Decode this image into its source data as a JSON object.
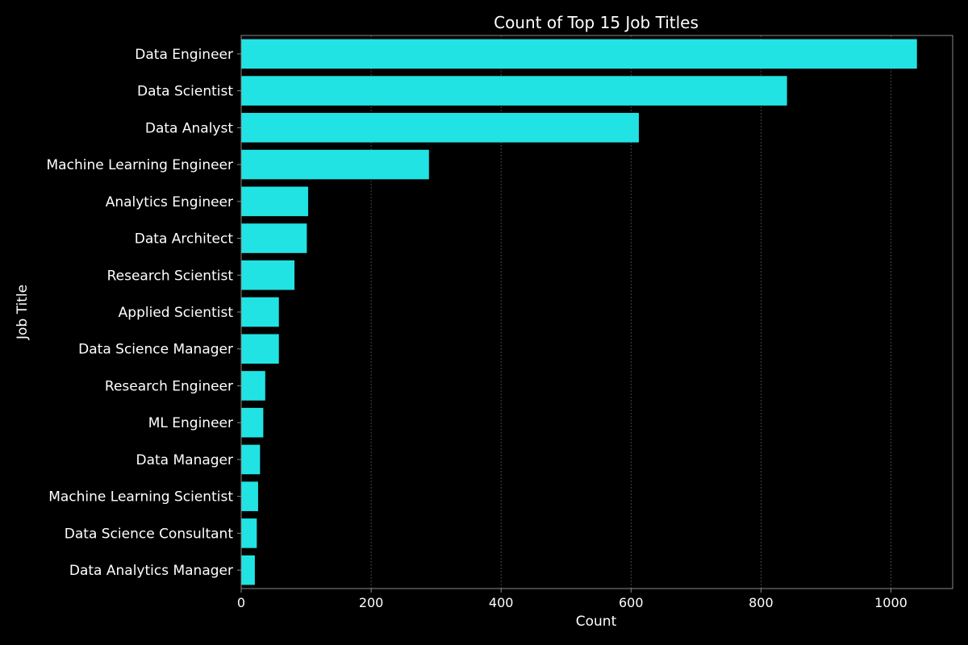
{
  "chart_data": {
    "type": "bar",
    "orientation": "horizontal",
    "title": "Count of Top 15 Job Titles",
    "xlabel": "Count",
    "ylabel": "Job Title",
    "xlim": [
      0,
      1095
    ],
    "xticks": [
      0,
      200,
      400,
      600,
      800,
      1000
    ],
    "grid": "x-dashed",
    "categories": [
      "Data Engineer",
      "Data Scientist",
      "Data Analyst",
      "Machine Learning Engineer",
      "Analytics Engineer",
      "Data Architect",
      "Research Scientist",
      "Applied Scientist",
      "Data Science Manager",
      "Research Engineer",
      "ML Engineer",
      "Data Manager",
      "Machine Learning Scientist",
      "Data Science Consultant",
      "Data Analytics Manager"
    ],
    "values": [
      1040,
      840,
      612,
      289,
      103,
      101,
      82,
      58,
      58,
      37,
      34,
      29,
      26,
      24,
      21
    ],
    "colors": {
      "bar": "#22e3e3",
      "background": "#000000",
      "text": "#ffffff",
      "axis": "#888888",
      "grid": "#555555"
    }
  }
}
